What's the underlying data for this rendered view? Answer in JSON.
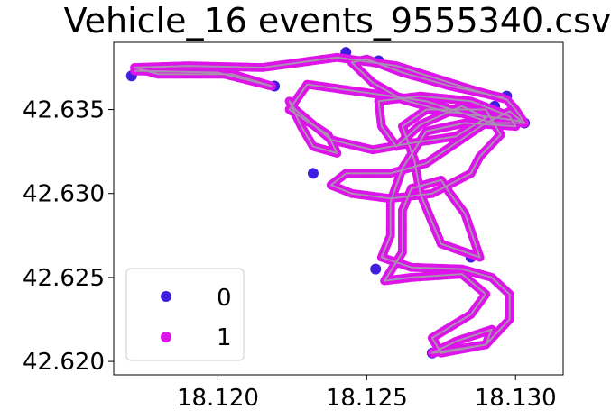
{
  "chart_data": {
    "type": "scatter",
    "title": "Vehicle_16 events_9555340.csv",
    "xlabel": "",
    "ylabel": "",
    "xlim": [
      18.1165,
      18.1316
    ],
    "ylim": [
      42.6192,
      42.639
    ],
    "xticks": [
      18.12,
      18.125,
      18.13
    ],
    "xtick_labels": [
      "18.120",
      "18.125",
      "18.130"
    ],
    "yticks": [
      42.62,
      42.625,
      42.63,
      42.635
    ],
    "ytick_labels": [
      "42.620",
      "42.625",
      "42.630",
      "42.635"
    ],
    "grid": false,
    "legend_position": "lower-left",
    "series": [
      {
        "name": "0",
        "color": "#3f1ee0",
        "x": [
          18.1171,
          18.1219,
          18.1243,
          18.1254,
          18.1285,
          18.1292,
          18.1303,
          18.1297,
          18.1293,
          18.1232,
          18.1253,
          18.1272
        ],
        "y": [
          42.637,
          42.6364,
          42.6384,
          42.6379,
          42.6262,
          42.6216,
          42.6342,
          42.6358,
          42.6352,
          42.6312,
          42.6255,
          42.6205
        ]
      },
      {
        "name": "1",
        "color": "#dd14ea",
        "path": [
          [
            18.1172,
            42.6373
          ],
          [
            18.12,
            42.6372
          ],
          [
            18.1218,
            42.6364
          ],
          [
            18.1205,
            42.6371
          ],
          [
            18.118,
            42.6371
          ],
          [
            18.1172,
            42.6375
          ],
          [
            18.119,
            42.6376
          ],
          [
            18.1215,
            42.6375
          ],
          [
            18.124,
            42.6381
          ],
          [
            18.126,
            42.6376
          ],
          [
            18.1285,
            42.6362
          ],
          [
            18.1297,
            42.6356
          ],
          [
            18.13,
            42.635
          ],
          [
            18.1303,
            42.6342
          ],
          [
            18.1292,
            42.6342
          ],
          [
            18.127,
            42.6355
          ],
          [
            18.125,
            42.636
          ],
          [
            18.123,
            42.6365
          ],
          [
            18.1224,
            42.635
          ],
          [
            18.1237,
            42.6335
          ],
          [
            18.124,
            42.6324
          ],
          [
            18.1232,
            42.6328
          ],
          [
            18.1228,
            42.634
          ],
          [
            18.1224,
            42.6355
          ],
          [
            18.1226,
            42.635
          ],
          [
            18.1238,
            42.6332
          ],
          [
            18.1252,
            42.6326
          ],
          [
            18.1265,
            42.633
          ],
          [
            18.128,
            42.6334
          ],
          [
            18.129,
            42.6345
          ],
          [
            18.1282,
            42.6352
          ],
          [
            18.1268,
            42.6341
          ],
          [
            18.126,
            42.6328
          ],
          [
            18.1255,
            42.634
          ],
          [
            18.1254,
            42.6355
          ],
          [
            18.1268,
            42.6358
          ],
          [
            18.1285,
            42.6355
          ],
          [
            18.1298,
            42.6346
          ],
          [
            18.13,
            42.634
          ],
          [
            18.1283,
            42.6342
          ],
          [
            18.127,
            42.6337
          ],
          [
            18.1262,
            42.6315
          ],
          [
            18.1258,
            42.6295
          ],
          [
            18.1258,
            42.6275
          ],
          [
            18.1255,
            42.6262
          ],
          [
            18.1265,
            42.6256
          ],
          [
            18.1282,
            42.6255
          ],
          [
            18.1292,
            42.625
          ],
          [
            18.1298,
            42.624
          ],
          [
            18.1298,
            42.6225
          ],
          [
            18.129,
            42.621
          ],
          [
            18.1272,
            42.6205
          ],
          [
            18.128,
            42.6212
          ],
          [
            18.1292,
            42.6219
          ],
          [
            18.129,
            42.621
          ],
          [
            18.1275,
            42.6205
          ],
          [
            18.1272,
            42.6214
          ],
          [
            18.1285,
            42.6228
          ],
          [
            18.129,
            42.624
          ],
          [
            18.1282,
            42.6252
          ],
          [
            18.1265,
            42.625
          ],
          [
            18.1256,
            42.6248
          ],
          [
            18.1262,
            42.6265
          ],
          [
            18.1262,
            42.629
          ],
          [
            18.1265,
            42.6303
          ],
          [
            18.1275,
            42.6308
          ],
          [
            18.1278,
            42.63
          ],
          [
            18.1283,
            42.6288
          ],
          [
            18.1288,
            42.6262
          ],
          [
            18.1275,
            42.627
          ],
          [
            18.1268,
            42.63
          ],
          [
            18.1266,
            42.632
          ],
          [
            18.1262,
            42.634
          ],
          [
            18.127,
            42.635
          ],
          [
            18.129,
            42.635
          ],
          [
            18.1295,
            42.6335
          ],
          [
            18.1288,
            42.6322
          ],
          [
            18.1285,
            42.6312
          ],
          [
            18.1272,
            42.63
          ],
          [
            18.1258,
            42.6297
          ],
          [
            18.1245,
            42.63
          ],
          [
            18.1238,
            42.6305
          ],
          [
            18.1243,
            42.6312
          ],
          [
            18.1258,
            42.6312
          ],
          [
            18.127,
            42.6318
          ],
          [
            18.128,
            42.633
          ],
          [
            18.129,
            42.6342
          ],
          [
            18.1298,
            42.6349
          ],
          [
            18.1302,
            42.6343
          ],
          [
            18.1294,
            42.6345
          ],
          [
            18.1276,
            42.6349
          ],
          [
            18.1262,
            42.6356
          ],
          [
            18.1252,
            42.6366
          ],
          [
            18.1245,
            42.6378
          ],
          [
            18.125,
            42.638
          ],
          [
            18.1262,
            42.6372
          ],
          [
            18.1278,
            42.6364
          ],
          [
            18.1296,
            42.6357
          ]
        ]
      }
    ]
  }
}
